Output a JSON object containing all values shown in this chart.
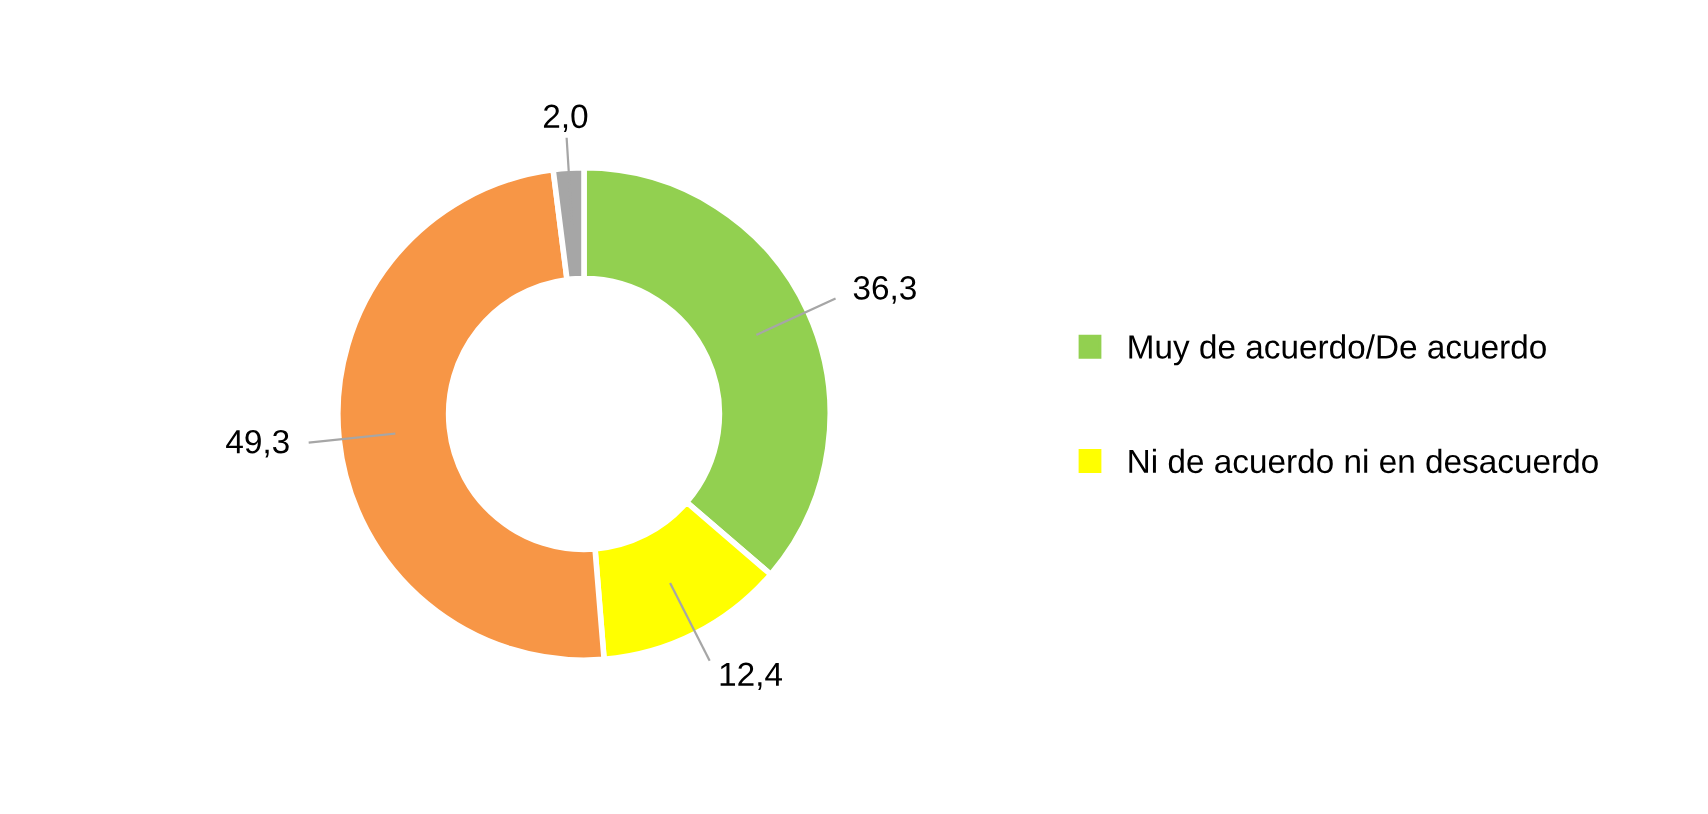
{
  "chart_data": {
    "type": "donut",
    "categories": [
      "Muy de acuerdo/De acuerdo",
      "Ni de acuerdo ni en desacuerdo",
      null,
      null
    ],
    "values": [
      36.3,
      12.4,
      49.3,
      2.0
    ],
    "value_labels": [
      "36,3",
      "12,4",
      "49,3",
      "2,0"
    ],
    "colors": [
      "#92d050",
      "#ffff00",
      "#f79646",
      "#a6a6a6"
    ],
    "legend": "right"
  }
}
